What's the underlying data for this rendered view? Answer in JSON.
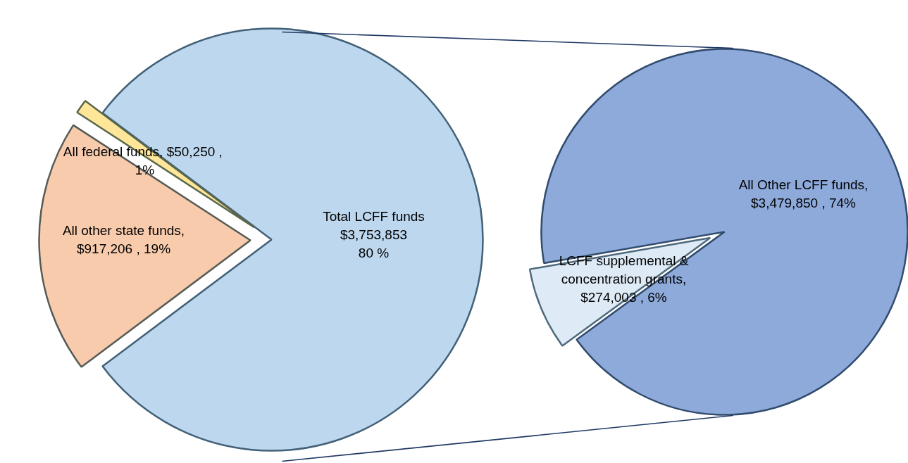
{
  "chart_data": [
    {
      "type": "pie",
      "categories": [
        "Total LCFF funds",
        "All federal funds",
        "All other state funds"
      ],
      "values": [
        3753853,
        50250,
        917206
      ],
      "colors": [
        "#bdd7ee",
        "#ffe699",
        "#f8cbad"
      ],
      "value_labels": [
        "$3,753,853\n80 %",
        "$50,250 ,\n1%",
        ",\n$917,206 , 19%"
      ]
    },
    {
      "type": "pie",
      "categories": [
        "All Other LCFF funds",
        "LCFF supplemental & concentration grants"
      ],
      "values": [
        3479850,
        274003
      ],
      "colors": [
        "#8eaadb",
        "#deebf7"
      ],
      "value_labels": [
        ",\n$3,479,850 , 74%",
        ",\n$274,003 , 6%"
      ]
    }
  ]
}
